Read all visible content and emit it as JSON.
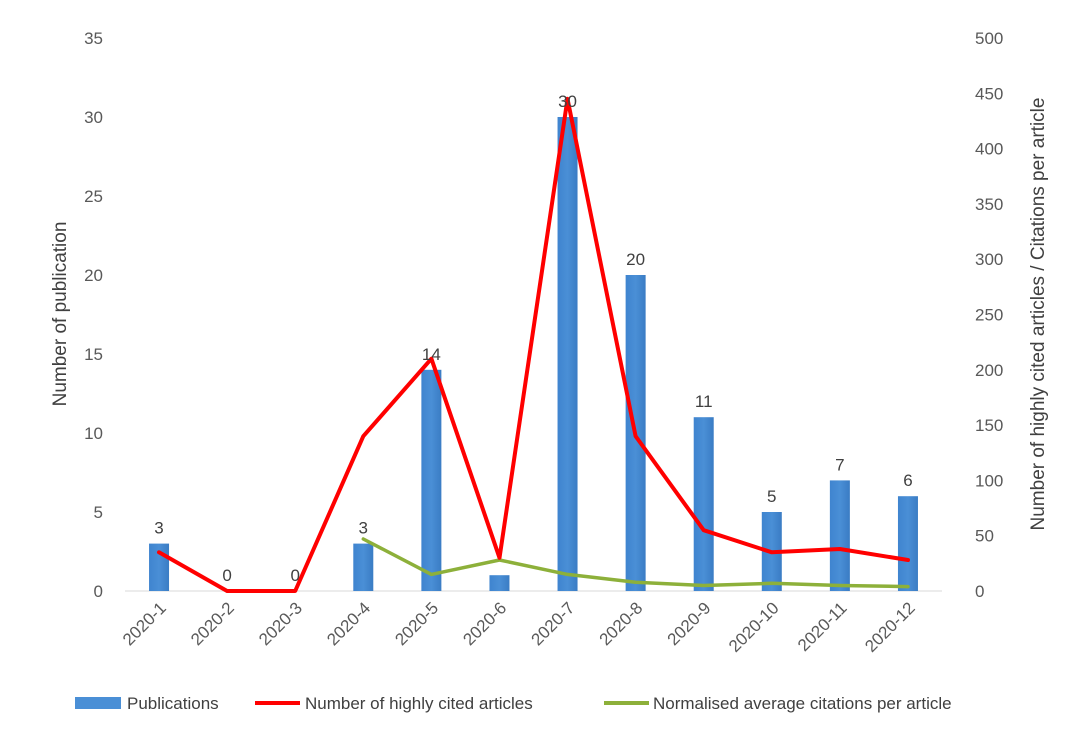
{
  "chart_data": {
    "type": "bar",
    "title": "",
    "categories": [
      "2020-1",
      "2020-2",
      "2020-3",
      "2020-4",
      "2020-5",
      "2020-6",
      "2020-7",
      "2020-8",
      "2020-9",
      "2020-10",
      "2020-11",
      "2020-12"
    ],
    "series": [
      {
        "name": "Publications",
        "type": "bar",
        "axis": "left",
        "color": "#4a8fd6",
        "values": [
          3,
          0,
          0,
          3,
          14,
          1,
          30,
          20,
          11,
          5,
          7,
          6
        ],
        "data_labels": [
          "3",
          "0",
          "0",
          "3",
          "14",
          "",
          "30",
          "20",
          "11",
          "5",
          "7",
          "6"
        ]
      },
      {
        "name": "Number of highly cited articles",
        "type": "line",
        "axis": "right",
        "color": "#ff0000",
        "values": [
          35,
          0,
          0,
          140,
          210,
          30,
          445,
          140,
          55,
          35,
          38,
          28
        ]
      },
      {
        "name": "Normalised average citations per article",
        "type": "line",
        "axis": "right",
        "color": "#8db03a",
        "values": [
          null,
          null,
          null,
          47,
          15,
          28,
          15,
          8,
          5,
          7,
          5,
          4
        ]
      }
    ],
    "ylabel_left": "Number of  publication",
    "ylabel_right": "Number of highly cited articles / Citations per article",
    "ylim_left": [
      0,
      35
    ],
    "yticks_left": [
      "0",
      "5",
      "10",
      "15",
      "20",
      "25",
      "30",
      "35"
    ],
    "ylim_right": [
      0,
      500
    ],
    "yticks_right": [
      "0",
      "50",
      "100",
      "150",
      "200",
      "250",
      "300",
      "350",
      "400",
      "450",
      "500"
    ],
    "grid": false,
    "legend_position": "bottom"
  }
}
